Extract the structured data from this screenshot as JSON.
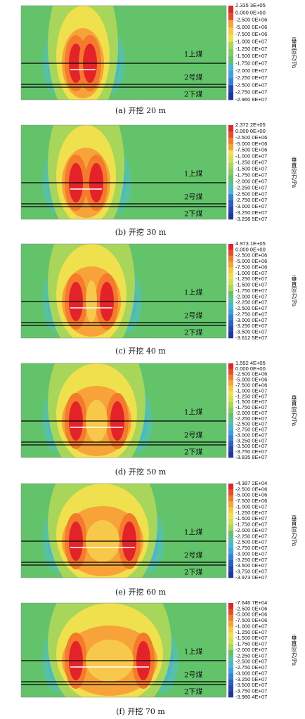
{
  "panels": [
    {
      "caption": "(a) 开挖 20 m",
      "colorbar_title": "垂直应力/Pa",
      "seam_labels": [
        "1上煤",
        "2号煤",
        "2下煤"
      ],
      "colorbar_labels": [
        "2.335 3E+05",
        "0.000 0E+00",
        "-2.500 0E+06",
        "-5.000 0E+06",
        "-7.500 0E+06",
        "-1.000 0E+07",
        "-1.250 0E+07",
        "-1.500 0E+07",
        "-1.750 0E+07",
        "-2.000 0E+07",
        "-2.250 0E+07",
        "-2.500 0E+07",
        "-2.750 0E+07",
        "-2.960 8E+07"
      ]
    },
    {
      "caption": "(b) 开挖 30 m",
      "colorbar_title": "垂直应力/Pa",
      "seam_labels": [
        "1上煤",
        "2号煤",
        "2下煤"
      ],
      "colorbar_labels": [
        "2.372 2E+05",
        "0.000 0E+00",
        "-2.500 0E+06",
        "-5.000 0E+06",
        "-7.500 0E+06",
        "-1.000 0E+07",
        "-1.250 0E+07",
        "-1.500 0E+07",
        "-1.750 0E+07",
        "-2.000 0E+07",
        "-2.250 0E+07",
        "-2.500 0E+07",
        "-2.750 0E+07",
        "-3.000 0E+07",
        "-3.250 0E+07",
        "-3.298 5E+07"
      ]
    },
    {
      "caption": "(c) 开挖 40 m",
      "colorbar_title": "垂直应力/Pa",
      "seam_labels": [
        "1上煤",
        "2号煤",
        "2下煤"
      ],
      "colorbar_labels": [
        "4.973 1E+05",
        "0.000 0E+00",
        "-2.500 0E+06",
        "-5.000 0E+06",
        "-7.500 0E+06",
        "-1.000 0E+07",
        "-1.250 0E+07",
        "-1.500 0E+07",
        "-1.750 0E+07",
        "-2.000 0E+07",
        "-2.250 0E+07",
        "-2.500 0E+07",
        "-2.750 0E+07",
        "-3.000 0E+07",
        "-3.250 0E+07",
        "-3.500 0E+07",
        "-3.612 5E+07"
      ]
    },
    {
      "caption": "(d) 开挖 50 m",
      "colorbar_title": "垂直应力/Pa",
      "seam_labels": [
        "1上煤",
        "2号煤",
        "2下煤"
      ],
      "colorbar_labels": [
        "1.592 4E+05",
        "0.000 0E+00",
        "-2.500 0E+06",
        "-5.000 0E+06",
        "-7.500 0E+06",
        "-1.000 0E+07",
        "-1.250 0E+07",
        "-1.500 0E+07",
        "-1.750 0E+07",
        "-2.000 0E+07",
        "-2.250 0E+07",
        "-2.500 0E+07",
        "-2.750 0E+07",
        "-3.000 0E+07",
        "-3.250 0E+07",
        "-3.500 0E+07",
        "-3.750 0E+07",
        "-3.835 8E+07"
      ]
    },
    {
      "caption": "(e) 开挖 60 m",
      "colorbar_title": "垂直应力/Pa",
      "seam_labels": [
        "1上煤",
        "2号煤",
        "2下煤"
      ],
      "colorbar_labels": [
        "-4.387 2E+04",
        "-2.500 0E+06",
        "-5.000 0E+06",
        "-7.500 0E+06",
        "-1.000 0E+07",
        "-1.250 0E+07",
        "-1.500 0E+07",
        "-1.750 0E+07",
        "-2.000 0E+07",
        "-2.250 0E+07",
        "-2.500 0E+07",
        "-2.750 0E+07",
        "-3.000 0E+07",
        "-3.250 0E+07",
        "-3.500 0E+07",
        "-3.750 0E+07",
        "-3.973 0E+07"
      ]
    },
    {
      "caption": "(f) 开挖 70 m",
      "colorbar_title": "垂直应力/Pa",
      "seam_labels": [
        "1上煤",
        "2号煤",
        "2下煤"
      ],
      "colorbar_labels": [
        "-7.646 7E+04",
        "-2.500 0E+06",
        "-5.000 0E+06",
        "-7.500 0E+06",
        "-1.000 0E+07",
        "-1.250 0E+07",
        "-1.500 0E+07",
        "-1.750 0E+07",
        "-2.000 0E+07",
        "-2.250 0E+07",
        "-2.500 0E+07",
        "-2.750 0E+07",
        "-3.000 0E+07",
        "-3.250 0E+07",
        "-3.500 0E+07",
        "-3.750 0E+07",
        "-3.980 4E+07"
      ]
    }
  ]
}
